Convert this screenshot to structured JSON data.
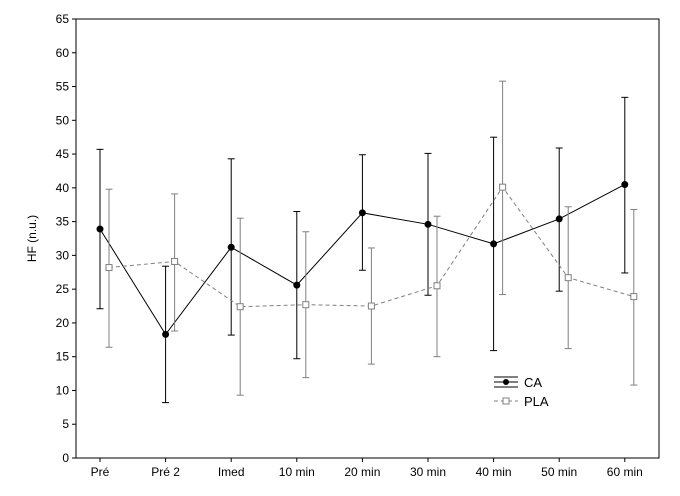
{
  "chart_data": {
    "type": "line",
    "title": "",
    "xlabel": "",
    "ylabel": "HF (n.u.)",
    "ylim": [
      0,
      65
    ],
    "yticks": [
      0,
      5,
      10,
      15,
      20,
      25,
      30,
      35,
      40,
      45,
      50,
      55,
      60,
      65
    ],
    "categories": [
      "Pré",
      "Pré 2",
      "Imed",
      "10 min",
      "20 min",
      "30 min",
      "40 min",
      "50 min",
      "60 min"
    ],
    "grid": false,
    "legend_position": "bottom-right",
    "series": [
      {
        "name": "CA",
        "color": "#000000",
        "marker": "filled-circle",
        "line_style": "solid",
        "values": [
          33.9,
          18.3,
          31.2,
          25.6,
          36.3,
          34.6,
          31.7,
          35.4,
          40.5
        ],
        "err_low": [
          22.1,
          8.2,
          18.2,
          14.7,
          27.8,
          24.1,
          15.9,
          24.7,
          27.4
        ],
        "err_high": [
          45.7,
          28.4,
          44.3,
          36.5,
          44.9,
          45.1,
          47.5,
          45.9,
          53.4
        ]
      },
      {
        "name": "PLA",
        "color": "#808080",
        "marker": "open-square",
        "line_style": "dashed",
        "values": [
          28.2,
          29.1,
          22.4,
          22.7,
          22.5,
          25.5,
          40.1,
          26.7,
          23.9
        ],
        "err_low": [
          16.4,
          18.8,
          9.3,
          11.9,
          13.9,
          15.0,
          24.2,
          16.2,
          10.8
        ],
        "err_high": [
          39.8,
          39.1,
          35.5,
          33.5,
          31.1,
          35.8,
          55.8,
          37.2,
          36.8
        ]
      }
    ]
  }
}
